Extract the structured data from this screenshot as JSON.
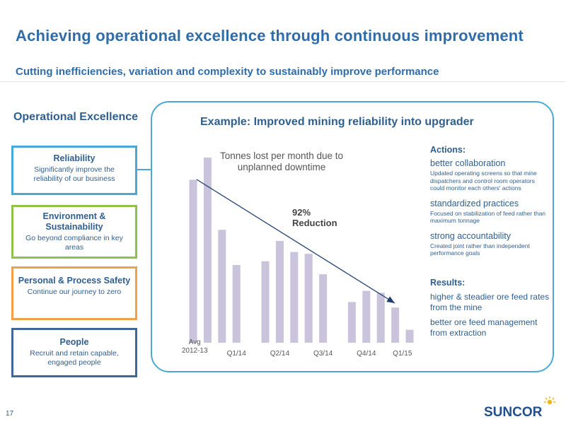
{
  "header": {
    "title": "Achieving operational excellence through continuous improvement",
    "subtitle": "Cutting inefficiencies, variation and complexity to sustainably improve performance"
  },
  "pillars": {
    "heading": "Operational Excellence",
    "cards": [
      {
        "title": "Reliability",
        "desc": "Significantly improve the reliability of our business",
        "color": "#4aa9d4"
      },
      {
        "title": "Environment & Sustainability",
        "desc": "Go beyond compliance in key areas",
        "color": "#8fc14c"
      },
      {
        "title": "Personal & Process Safety",
        "desc": "Continue our journey to zero",
        "color": "#f0a04b"
      },
      {
        "title": "People",
        "desc": "Recruit and retain capable, engaged people",
        "color": "#3e6898"
      }
    ]
  },
  "example": {
    "title": "Example: Improved mining reliability into upgrader",
    "reduction_label": "92% Reduction"
  },
  "chart_data": {
    "type": "bar",
    "title": "Tonnes lost per month due to unplanned downtime",
    "categories": [
      "Avg 2012-13",
      "Avg 2012-13",
      "Q1/14",
      "Q1/14",
      "Q1/14",
      "Q2/14",
      "Q2/14",
      "Q2/14",
      "Q3/14",
      "Q3/14",
      "Q3/14",
      "Q4/14",
      "Q4/14",
      "Q4/14",
      "Q1/15",
      "Q1/15"
    ],
    "x_tick_labels": [
      "Avg 2012-13",
      "Q1/14",
      "Q2/14",
      "Q3/14",
      "Q4/14",
      "Q1/15"
    ],
    "values": [
      88,
      100,
      61,
      42,
      0,
      44,
      55,
      49,
      48,
      37,
      0,
      22,
      28,
      27,
      19,
      7
    ],
    "ylim": [
      0,
      100
    ],
    "y_axis_shown": false,
    "annotation": "92% Reduction",
    "trend_arrow": true,
    "bar_color": "#c9c3dc",
    "arrow_color": "#1f3f6f"
  },
  "actions": {
    "heading": "Actions:",
    "items": [
      {
        "title": "better collaboration",
        "desc": "Updated operating screens so that mine dispatchers and control room operators could monitor each others' actions"
      },
      {
        "title": "standardized practices",
        "desc": "Focused on stabilization of feed rather than maximum tonnage"
      },
      {
        "title": "strong accountability",
        "desc": "Created joint rather than independent performance goals"
      }
    ]
  },
  "results": {
    "heading": "Results:",
    "items": [
      "higher & steadier ore feed rates from the mine",
      "better ore feed management from extraction"
    ]
  },
  "footer": {
    "page_number": "17",
    "logo_text": "SUNCOR",
    "logo_color": "#1f4f8f",
    "logo_accent": "#f2b21a"
  }
}
